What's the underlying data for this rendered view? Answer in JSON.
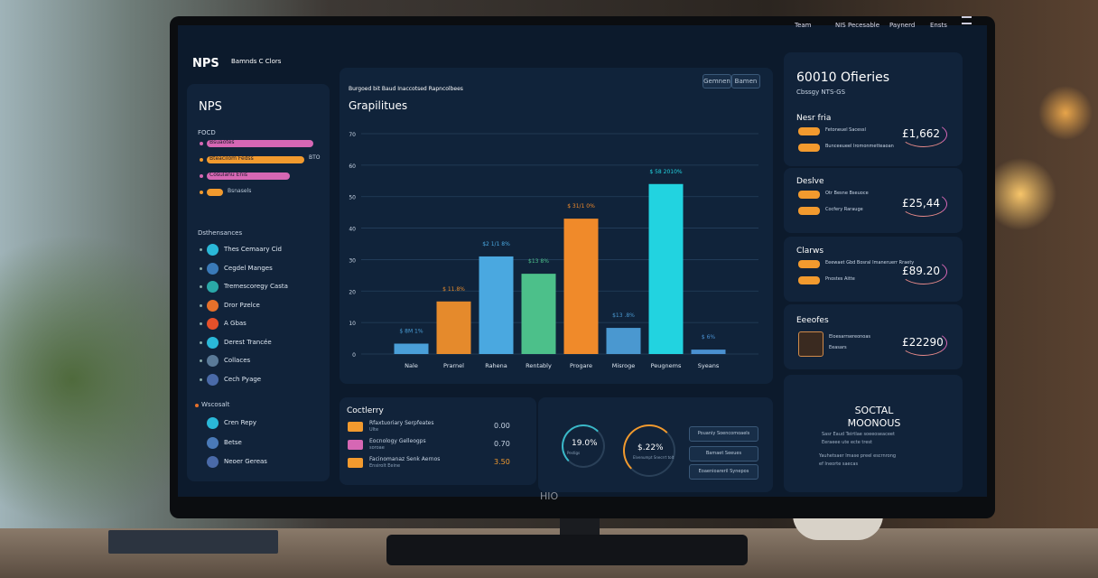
{
  "header": {
    "logo": "NPS",
    "brand": "Bamnds C Clors",
    "nav": [
      "Team",
      "NIS Pecesable",
      "Paynerd",
      "Ensts"
    ]
  },
  "sidebar": {
    "title": "NPS",
    "section": "FOCD",
    "pills": [
      "Bsuaotes",
      "Bteacilom Fedss",
      "Cosulanu Enis",
      "Bsnasels"
    ],
    "pill_value": "BTO",
    "list_title": "Dsthensances",
    "items": [
      "Thes Cemaary Cid",
      "Cegdel Manges",
      "Tremescoregy Casta",
      "Dror Pzelce",
      "A Gbas",
      "Derest Trancée",
      "Collaces",
      "Cech Pyage"
    ],
    "list2_title": "Wscosalt",
    "items2": [
      "Cren Repy",
      "Betse",
      "Neoer Gereas"
    ]
  },
  "chart": {
    "type": "bar",
    "subtitle": "Burgoed bit Baud Inaccotsed Rapncolbees",
    "title": "Grapilitues",
    "buttons": [
      "Gemnen",
      "Bamen"
    ],
    "categories": [
      "Nale",
      "Prarnel",
      "Rahena",
      "Rentably",
      "Progare",
      "Misroge",
      "Peugnems",
      "Syeans"
    ],
    "values": [
      3.3,
      16.7,
      31,
      25.5,
      43,
      8.3,
      54,
      1.4
    ],
    "colors": [
      "#4a9fd8",
      "#e58a2c",
      "#4aa8e0",
      "#4cc08a",
      "#f08a2a",
      "#4a98d0",
      "#22d3e0",
      "#4a90d0"
    ],
    "annotations": [
      "$ 8M 1%",
      "$ 11.8%",
      "$2 1/1 8%",
      "$13 8%",
      "$ 31/1 0%",
      "$13 .8%",
      "$ 58 2010%",
      "$ 6%"
    ],
    "ylim": [
      0,
      70
    ],
    "yticks": [
      0,
      10,
      20,
      30,
      40,
      50,
      60,
      70
    ]
  },
  "summary": {
    "title": "Coctlerry",
    "rows": [
      {
        "text": "Rfaxtuoriary Serpfeates",
        "sub": "Ulte",
        "value": "0.00"
      },
      {
        "text": "Eocnology Gelleogps",
        "sub": "soroae",
        "value": "0.70"
      },
      {
        "text": "Facinomanaz Senk Aernos",
        "sub": "Ensirolt Eeine",
        "value": "3.50"
      }
    ],
    "gauges": [
      {
        "value": "19.0%",
        "label": "Pestigs"
      },
      {
        "value": "$.22%",
        "label": "Elvenumpt Snecrrt tolt"
      }
    ],
    "buttons": [
      "Pouaniy Soencomoaels",
      "Bamaet Seeues",
      "Eoaenioareril Synepos"
    ]
  },
  "right": {
    "title": "60010 Ofieries",
    "subtitle": "Cbssgy NTS-GS",
    "cards": [
      {
        "title": "Nesr fria",
        "items": [
          "Fetoneuel Sacessl",
          "Bunceeueel Iromonmetteaoan"
        ],
        "amount": "£1,662"
      },
      {
        "title": "Deslve",
        "items": [
          "Otr Besne Bseuoce",
          "Cocfery Rarauge"
        ],
        "amount": "£25,44"
      },
      {
        "title": "Clarws",
        "items": [
          "Eeewaet Gbd Bosral Imaneruerr Rraety",
          "Pnostes Aitte"
        ],
        "amount": "£89.20"
      },
      {
        "title": "Eeeofes",
        "items": [
          "Eloesarrsereonoas",
          "Eeasars"
        ],
        "amount": "£22290"
      }
    ],
    "promo_title": "SOCTAL MOONOUS",
    "promo_lines": [
      "Sasr Eaud Teirtlae soeeoseaceet",
      "Eeraeee ute ecte trest",
      "Yauhetsaer Imase preel escrnrong",
      "ef Ineorte saecas"
    ]
  },
  "monitor": {
    "brand": "HIO"
  }
}
